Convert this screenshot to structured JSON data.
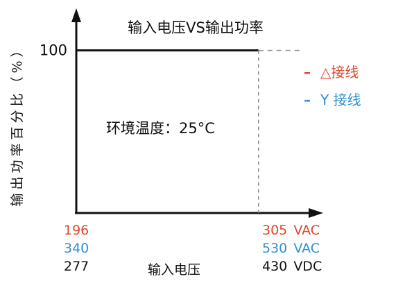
{
  "chart_data": {
    "type": "line",
    "title": "输入电压VS输出功率",
    "ylabel": "输出功率百分比（%）",
    "xlabel": "输入电压",
    "annotation": "环境温度：25°C",
    "y_ticks": [
      100
    ],
    "y_tick_labels": [
      "100"
    ],
    "x_tick_labels": {
      "min": [
        {
          "text": "196",
          "color": "#e0452b"
        },
        {
          "text": "340",
          "color": "#2f8fd3"
        },
        {
          "text": "277",
          "color": "#111111"
        }
      ],
      "max": [
        {
          "value": "305",
          "unit": "VAC",
          "color": "#e0452b"
        },
        {
          "value": "530",
          "unit": "VAC",
          "color": "#2f8fd3"
        },
        {
          "value": "430",
          "unit": "VDC",
          "color": "#111111"
        }
      ]
    },
    "legend": [
      {
        "marker": "–",
        "name": "△接线",
        "color": "#e0452b"
      },
      {
        "marker": "–",
        "name": "Y 接线",
        "color": "#2f8fd3"
      }
    ],
    "legend_position": "right",
    "series": [
      {
        "points": [
          [
            196,
            100
          ],
          [
            305,
            100
          ]
        ],
        "style": "solid",
        "color": "#111111"
      },
      {
        "points": [
          [
            305,
            100
          ],
          [
            330,
            100
          ]
        ],
        "style": "dashed",
        "color": "#888888"
      }
    ],
    "xlim": [
      196,
      330
    ],
    "ylim": [
      0,
      125
    ],
    "grid": false
  }
}
